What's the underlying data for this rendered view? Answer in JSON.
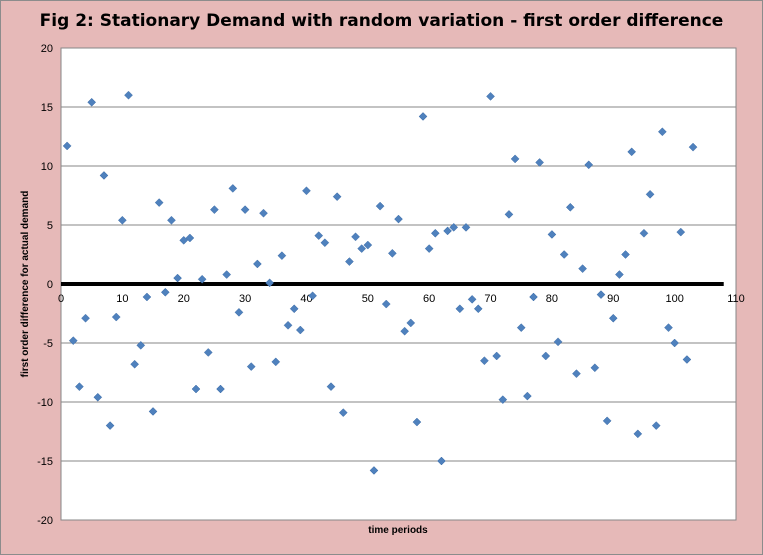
{
  "chart_data": {
    "type": "scatter",
    "title": "Fig 2: Stationary Demand with random variation - first order difference",
    "xlabel": "time periods",
    "ylabel": "first order difference for actual demand",
    "xlim": [
      0,
      110
    ],
    "ylim": [
      -20,
      20
    ],
    "xticks": [
      0,
      10,
      20,
      30,
      40,
      50,
      60,
      70,
      80,
      90,
      100,
      110
    ],
    "yticks": [
      20,
      15,
      10,
      5,
      0,
      -5,
      -10,
      -15,
      -20
    ],
    "grid": true,
    "legend": "none",
    "zero_line": {
      "y": 0,
      "x_end": 108
    },
    "colors": {
      "background": "#e6b9b8",
      "plot_area": "#ffffff",
      "marker": "#4f81bd",
      "gridline": "#878787",
      "zero_line": "#000000"
    },
    "series": [
      {
        "x": [
          1,
          2,
          3,
          4,
          5,
          6,
          7,
          8,
          9,
          10,
          11,
          12,
          13,
          14,
          15,
          16,
          17,
          18,
          19,
          20,
          21,
          22,
          23,
          24,
          25,
          26,
          27,
          28,
          29,
          30,
          31,
          32,
          33,
          34,
          35,
          36,
          37,
          38,
          39,
          40,
          41,
          42,
          43,
          44,
          45,
          46,
          47,
          48,
          49,
          50,
          51,
          52,
          53,
          54,
          55,
          56,
          57,
          58,
          59,
          60,
          61,
          62,
          63,
          64,
          65,
          66,
          67,
          68,
          69,
          70,
          71,
          72,
          73,
          74,
          75,
          76,
          77,
          78,
          79,
          80,
          81,
          82,
          83,
          84,
          85,
          86,
          87,
          88,
          89,
          90,
          91,
          92,
          93,
          94,
          95,
          96,
          97,
          98,
          99,
          100,
          101,
          102,
          103
        ],
        "y": [
          11.7,
          -4.8,
          -8.7,
          -2.9,
          15.4,
          -9.6,
          9.2,
          -12.0,
          -2.8,
          5.4,
          16.0,
          -6.8,
          -5.2,
          -1.1,
          -10.8,
          6.9,
          -0.7,
          5.4,
          0.5,
          3.7,
          3.9,
          -8.9,
          0.4,
          -5.8,
          6.3,
          -8.9,
          0.8,
          8.1,
          -2.4,
          6.3,
          -7.0,
          1.7,
          6.0,
          0.1,
          -6.6,
          2.4,
          -3.5,
          -2.1,
          -3.9,
          7.9,
          -1.0,
          4.1,
          3.5,
          -8.7,
          7.4,
          -10.9,
          1.9,
          4.0,
          3.0,
          3.3,
          -15.8,
          6.6,
          -1.7,
          2.6,
          5.5,
          -4.0,
          -3.3,
          -11.7,
          14.2,
          3.0,
          4.3,
          -15.0,
          4.5,
          4.8,
          -2.1,
          4.8,
          -1.3,
          -2.1,
          -6.5,
          15.9,
          -6.1,
          -9.8,
          5.9,
          10.6,
          -3.7,
          -9.5,
          -1.1,
          10.3,
          -6.1,
          4.2,
          -4.9,
          2.5,
          6.5,
          -7.6,
          1.3,
          10.1,
          -7.1,
          -0.9,
          -11.6,
          -2.9,
          0.8,
          2.5,
          11.2,
          -12.7,
          4.3,
          7.6,
          -12.0,
          12.9,
          -3.7,
          -5.0,
          4.4,
          -6.4,
          11.6
        ]
      }
    ]
  }
}
